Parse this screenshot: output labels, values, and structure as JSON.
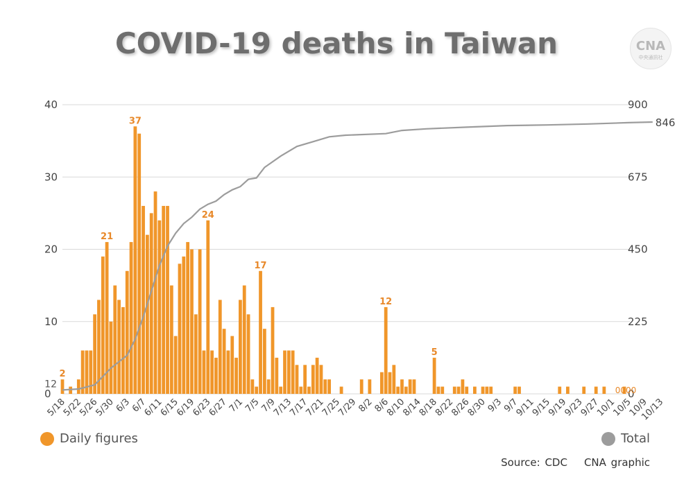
{
  "title": "COVID-19 deaths in Taiwan",
  "logo": {
    "text": "CNA",
    "sub": "中央通訊社"
  },
  "legend": {
    "daily": "Daily figures",
    "total": "Total"
  },
  "source": "Source: CDC",
  "credit": "CNA graphic",
  "colors": {
    "daily": "#f0962a",
    "total": "#9c9c9c",
    "daily_label": "#e8892a"
  },
  "chart_data": {
    "type": "bar",
    "x_dates_start": "5/18",
    "x_tick_labels": [
      "5/18",
      "5/22",
      "5/26",
      "5/30",
      "6/3",
      "6/7",
      "6/11",
      "6/15",
      "6/19",
      "6/23",
      "6/27",
      "7/1",
      "7/5",
      "7/9",
      "7/13",
      "7/17",
      "7/21",
      "7/25",
      "7/29",
      "8/2",
      "8/6",
      "8/10",
      "8/14",
      "8/18",
      "8/22",
      "8/26",
      "8/30",
      "9/3",
      "9/7",
      "9/11",
      "9/15",
      "9/19",
      "9/23",
      "9/27",
      "10/1",
      "10/5",
      "10/9",
      "10/13"
    ],
    "series": [
      {
        "name": "Daily figures",
        "axis": "left",
        "values": [
          2,
          0,
          1,
          0,
          2,
          6,
          6,
          6,
          11,
          13,
          19,
          21,
          10,
          15,
          13,
          12,
          17,
          21,
          37,
          36,
          26,
          22,
          25,
          28,
          24,
          26,
          26,
          15,
          8,
          18,
          19,
          21,
          20,
          11,
          20,
          6,
          24,
          6,
          5,
          13,
          9,
          6,
          8,
          5,
          13,
          15,
          11,
          2,
          1,
          17,
          9,
          2,
          12,
          5,
          1,
          6,
          6,
          6,
          4,
          1,
          4,
          1,
          4,
          5,
          4,
          2,
          2,
          0,
          0,
          1,
          0,
          0,
          0,
          0,
          2,
          0,
          2,
          0,
          0,
          3,
          12,
          3,
          4,
          1,
          2,
          1,
          2,
          2,
          0,
          0,
          0,
          0,
          5,
          1,
          1,
          0,
          0,
          1,
          1,
          2,
          1,
          0,
          1,
          0,
          1,
          1,
          1,
          0,
          0,
          0,
          0,
          0,
          1,
          1,
          0,
          0,
          0,
          0,
          0,
          0,
          0,
          0,
          0,
          1,
          0,
          1,
          0,
          0,
          0,
          1,
          0,
          0,
          1,
          0,
          1,
          0,
          0,
          0,
          0,
          1
        ],
        "annotations": [
          {
            "index": 0,
            "label": "2"
          },
          {
            "index": 11,
            "label": "21"
          },
          {
            "index": 18,
            "label": "37"
          },
          {
            "index": 36,
            "label": "24"
          },
          {
            "index": 49,
            "label": "17"
          },
          {
            "index": 80,
            "label": "12"
          },
          {
            "index": 92,
            "label": "5"
          },
          {
            "index": 142,
            "label": "1"
          }
        ],
        "trailing_zero_label": "0000"
      },
      {
        "name": "Total",
        "axis": "right",
        "points": [
          [
            0,
            12
          ],
          [
            4,
            15
          ],
          [
            8,
            28
          ],
          [
            12,
            80
          ],
          [
            16,
            120
          ],
          [
            18,
            170
          ],
          [
            20,
            240
          ],
          [
            22,
            320
          ],
          [
            24,
            400
          ],
          [
            26,
            460
          ],
          [
            28,
            500
          ],
          [
            30,
            530
          ],
          [
            32,
            550
          ],
          [
            34,
            575
          ],
          [
            36,
            590
          ],
          [
            38,
            600
          ],
          [
            40,
            620
          ],
          [
            42,
            635
          ],
          [
            44,
            645
          ],
          [
            46,
            668
          ],
          [
            48,
            672
          ],
          [
            50,
            705
          ],
          [
            54,
            740
          ],
          [
            58,
            770
          ],
          [
            62,
            785
          ],
          [
            66,
            800
          ],
          [
            70,
            805
          ],
          [
            80,
            810
          ],
          [
            84,
            820
          ],
          [
            90,
            825
          ],
          [
            100,
            830
          ],
          [
            110,
            835
          ],
          [
            120,
            837
          ],
          [
            130,
            840
          ],
          [
            140,
            844
          ],
          [
            146,
            846
          ]
        ],
        "start_label": "12",
        "end_label": "846"
      }
    ],
    "y_left": {
      "ticks": [
        "0",
        "10",
        "20",
        "30",
        "40"
      ],
      "range": [
        0,
        40
      ]
    },
    "y_right": {
      "ticks": [
        "0",
        "225",
        "450",
        "675",
        "900"
      ],
      "range": [
        0,
        900
      ]
    },
    "grid": true,
    "legend_position": "bottom"
  }
}
